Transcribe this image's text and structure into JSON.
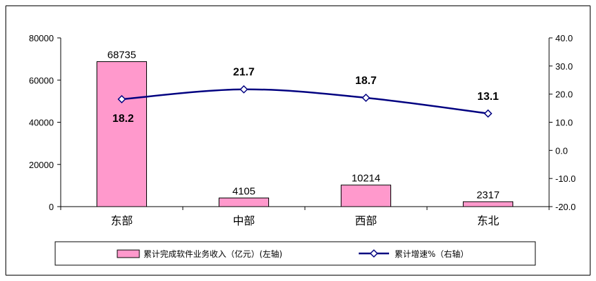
{
  "chart_data": {
    "type": "bar",
    "categories": [
      "东部",
      "中部",
      "西部",
      "东北"
    ],
    "series": [
      {
        "name": "累计完成软件业务收入（亿元）(左轴)",
        "type": "bar",
        "axis": "left",
        "values": [
          68735,
          4105,
          10214,
          2317
        ]
      },
      {
        "name": "累计增速%（右轴）",
        "type": "line",
        "axis": "right",
        "values": [
          18.2,
          21.7,
          18.7,
          13.1
        ]
      }
    ],
    "y_left": {
      "ylim": [
        0,
        80000
      ],
      "ticks": [
        "0",
        "20000",
        "40000",
        "60000",
        "80000"
      ]
    },
    "y_right": {
      "ylim": [
        -20,
        40
      ],
      "ticks": [
        "-20.0",
        "-10.0",
        "0.0",
        "10.0",
        "20.0",
        "30.0",
        "40.0"
      ]
    },
    "grid": false,
    "legend": "bottom",
    "colors": {
      "bar_fill": "#ff99cc",
      "bar_stroke": "#000000",
      "line": "#000080",
      "marker_fill": "#ffffff"
    }
  }
}
